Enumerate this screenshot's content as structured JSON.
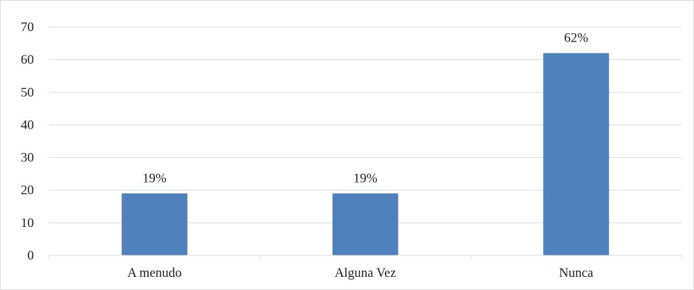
{
  "chart_data": {
    "type": "bar",
    "categories": [
      "A menudo",
      "Alguna Vez",
      "Nunca"
    ],
    "values": [
      19,
      19,
      62
    ],
    "data_labels": [
      "19%",
      "19%",
      "62%"
    ],
    "title": "",
    "xlabel": "",
    "ylabel": "",
    "ylim": [
      0,
      70
    ],
    "yticks": [
      0,
      10,
      20,
      30,
      40,
      50,
      60,
      70
    ],
    "grid": true,
    "legend": "none",
    "bar_color": "#4F81BD",
    "grid_color": "#d9d9d9"
  }
}
